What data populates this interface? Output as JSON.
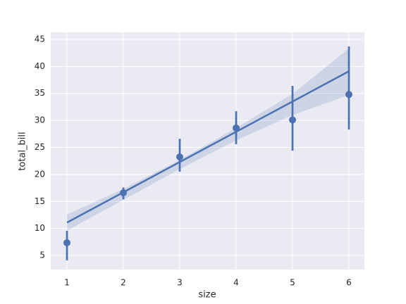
{
  "chart_data": {
    "type": "regplot",
    "xlabel": "size",
    "ylabel": "total_bill",
    "color": "#4c72b0",
    "background": "#eaeaf2",
    "grid": true,
    "xlim": [
      0.7125,
      6.275
    ],
    "ylim": [
      2.4,
      46.3
    ],
    "xticks": [
      1,
      2,
      3,
      4,
      5,
      6
    ],
    "yticks": [
      5,
      10,
      15,
      20,
      25,
      30,
      35,
      40,
      45
    ],
    "x": [
      1,
      2,
      3,
      4,
      5,
      6
    ],
    "values": [
      7.35,
      16.6,
      23.24,
      28.6,
      30.1,
      34.8
    ],
    "ci_lower": [
      4.1,
      15.4,
      20.5,
      25.6,
      24.4,
      28.3
    ],
    "ci_upper": [
      9.56,
      17.6,
      26.6,
      31.7,
      36.4,
      43.7
    ],
    "fit_x": [
      1,
      6
    ],
    "fit_y": [
      11.1,
      39.1
    ],
    "band_x": [
      1,
      2,
      3,
      4,
      5,
      6
    ],
    "band_lower": [
      9.6,
      15.3,
      21.0,
      26.3,
      31.0,
      34.7
    ],
    "band_upper": [
      12.6,
      17.3,
      22.7,
      28.6,
      34.9,
      43.3
    ]
  }
}
